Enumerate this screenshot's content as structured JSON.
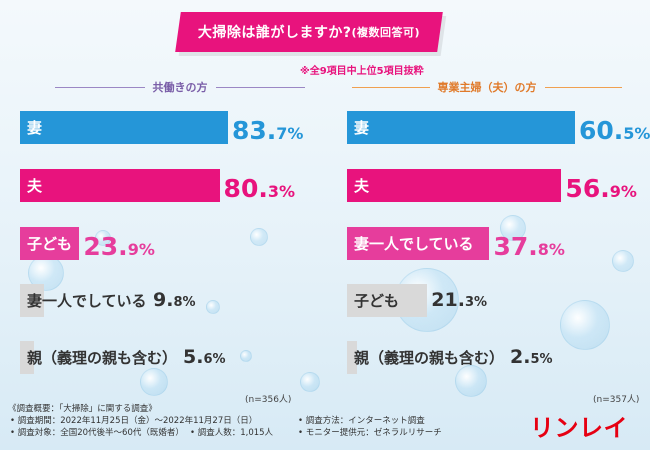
{
  "title": "大掃除は誰がしますか?",
  "title_suffix": "(複数回答可)",
  "note": "※全9項目中上位5項目抜粋",
  "colors": {
    "blue": "#2596d8",
    "magenta": "#e8137d",
    "pink": "#e63d9c",
    "gray": "#d9d9d9"
  },
  "chart_data": [
    {
      "type": "bar",
      "title": "共働きの方",
      "n_label": "(n=356人)",
      "categories": [
        "妻",
        "夫",
        "子ども",
        "妻一人でしている",
        "親（義理の親も含む）"
      ],
      "values": [
        83.7,
        80.3,
        23.9,
        9.8,
        5.6
      ],
      "value_labels": [
        {
          "int": "83.",
          "dec": "7%"
        },
        {
          "int": "80.",
          "dec": "3%"
        },
        {
          "int": "23.",
          "dec": "9%"
        },
        {
          "int": "9.",
          "dec": "8%"
        },
        {
          "int": "5.",
          "dec": "6%"
        }
      ],
      "unit": "%",
      "xlim": [
        0,
        100
      ],
      "bar_colors": [
        "#2596d8",
        "#e8137d",
        "#e63d9c",
        "#d9d9d9",
        "#d9d9d9"
      ],
      "label_colors": [
        "#ffffff",
        "#ffffff",
        "#ffffff",
        "#333333",
        "#333333"
      ],
      "value_colors": [
        "#2596d8",
        "#e8137d",
        "#e63d9c",
        "#333333",
        "#333333"
      ]
    },
    {
      "type": "bar",
      "title": "専業主婦（夫）の方",
      "n_label": "(n=357人)",
      "categories": [
        "妻",
        "夫",
        "妻一人でしている",
        "子ども",
        "親（義理の親も含む）"
      ],
      "values": [
        60.5,
        56.9,
        37.8,
        21.3,
        2.5
      ],
      "value_labels": [
        {
          "int": "60.",
          "dec": "5%"
        },
        {
          "int": "56.",
          "dec": "9%"
        },
        {
          "int": "37.",
          "dec": "8%"
        },
        {
          "int": "21.",
          "dec": "3%"
        },
        {
          "int": "2.",
          "dec": "5%"
        }
      ],
      "unit": "%",
      "xlim": [
        0,
        100
      ],
      "bar_colors": [
        "#2596d8",
        "#e8137d",
        "#e63d9c",
        "#d9d9d9",
        "#d9d9d9"
      ],
      "label_colors": [
        "#ffffff",
        "#ffffff",
        "#ffffff",
        "#333333",
        "#333333"
      ],
      "value_colors": [
        "#2596d8",
        "#e8137d",
        "#e63d9c",
        "#333333",
        "#333333"
      ]
    }
  ],
  "footer": {
    "heading": "《調査概要：「大掃除」に関する調査》",
    "period": "• 調査期間：2022年11月25日（金）〜2022年11月27日（日）",
    "method": "• 調査方法：インターネット調査",
    "target": "• 調査対象：全国20代後半〜60代（既婚者）",
    "count": "• 調査人数：1,015人",
    "provider": "• モニター提供元：ゼネラルリサーチ"
  },
  "logo": "リンレイ"
}
